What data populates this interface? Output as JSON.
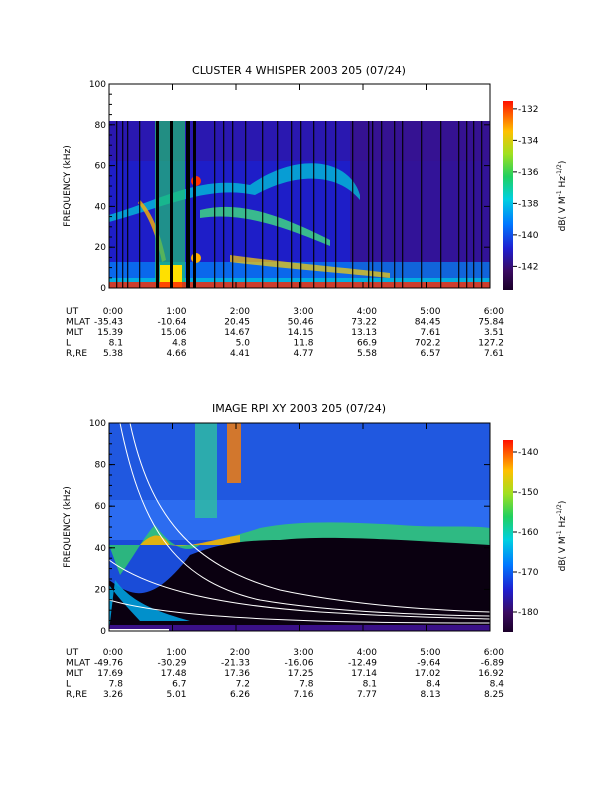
{
  "chart_data": [
    {
      "type": "heatmap",
      "title": "CLUSTER 4 WHISPER 2003 205 (07/24)",
      "ylabel": "FREQUENCY (kHz)",
      "ylim": [
        0,
        100
      ],
      "yticks": [
        "0",
        "20",
        "40",
        "60",
        "80",
        "100"
      ],
      "data_max_frequency_khz": 80,
      "xlim_hours": [
        0,
        6
      ],
      "colorbar": {
        "label_main": "dB( V M",
        "label_sup1": "-1",
        "label_mid": " Hz",
        "label_sup2": "-1/2",
        "label_end": ")",
        "range": [
          -143.5,
          -131.5
        ],
        "ticks": [
          "-132",
          "-134",
          "-136",
          "-138",
          "-140",
          "-142"
        ]
      },
      "ephemeris": {
        "labels": [
          "UT",
          "MLAT",
          "MLT",
          "L",
          "R,RE"
        ],
        "columns": [
          [
            "0:00",
            "-35.43",
            "15.39",
            "8.1",
            "5.38"
          ],
          [
            "1:00",
            "-10.64",
            "15.06",
            "4.8",
            "4.66"
          ],
          [
            "2:00",
            "20.45",
            "14.67",
            "5.0",
            "4.41"
          ],
          [
            "3:00",
            "50.46",
            "14.15",
            "11.8",
            "4.77"
          ],
          [
            "4:00",
            "73.22",
            "13.13",
            "66.9",
            "5.58"
          ],
          [
            "5:00",
            "84.45",
            "7.61",
            "702.2",
            "6.57"
          ],
          [
            "6:00",
            "75.84",
            "3.51",
            "127.2",
            "7.61"
          ]
        ]
      }
    },
    {
      "type": "heatmap",
      "title": "IMAGE RPI XY 2003 205 (07/24)",
      "ylabel": "FREQUENCY (kHz)",
      "ylim": [
        0,
        100
      ],
      "yticks": [
        "0",
        "20",
        "40",
        "60",
        "80",
        "100"
      ],
      "xlim_hours": [
        0,
        6
      ],
      "colorbar": {
        "label_main": "dB( V M",
        "label_sup1": "-1",
        "label_mid": " Hz",
        "label_sup2": "-1/2",
        "label_end": ")",
        "range": [
          -185,
          -137
        ],
        "ticks": [
          "-140",
          "-150",
          "-160",
          "-170",
          "-180"
        ]
      },
      "ephemeris": {
        "labels": [
          "UT",
          "MLAT",
          "MLT",
          "L",
          "R,RE"
        ],
        "columns": [
          [
            "0:00",
            "-49.76",
            "17.69",
            "7.8",
            "3.26"
          ],
          [
            "1:00",
            "-30.29",
            "17.48",
            "6.7",
            "5.01"
          ],
          [
            "2:00",
            "-21.33",
            "17.36",
            "7.2",
            "6.26"
          ],
          [
            "3:00",
            "-16.06",
            "17.25",
            "7.8",
            "7.16"
          ],
          [
            "4:00",
            "-12.49",
            "17.14",
            "8.1",
            "7.77"
          ],
          [
            "5:00",
            "-9.64",
            "17.02",
            "8.4",
            "8.13"
          ],
          [
            "6:00",
            "-6.89",
            "16.92",
            "8.4",
            "8.25"
          ]
        ]
      }
    }
  ]
}
